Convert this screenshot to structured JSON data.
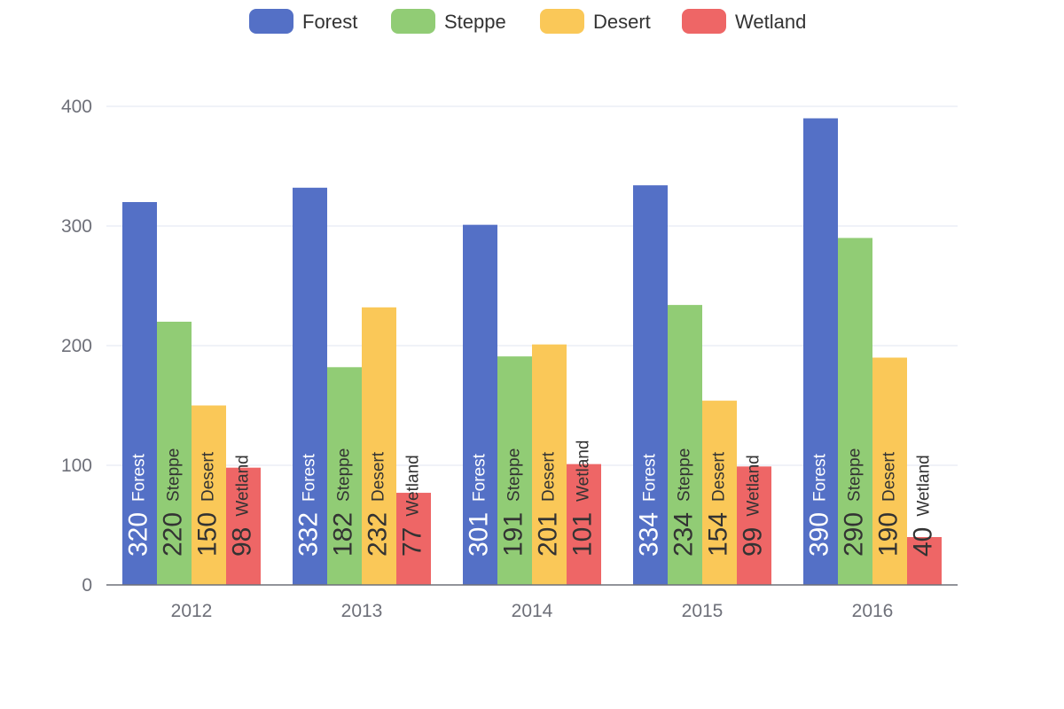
{
  "chart_data": {
    "type": "bar",
    "categories": [
      "2012",
      "2013",
      "2014",
      "2015",
      "2016"
    ],
    "series": [
      {
        "name": "Forest",
        "color": "#5470c6",
        "label_color": "#ffffff",
        "values": [
          320,
          332,
          301,
          334,
          390
        ]
      },
      {
        "name": "Steppe",
        "color": "#91cc75",
        "label_color": "#333333",
        "values": [
          220,
          182,
          191,
          234,
          290
        ]
      },
      {
        "name": "Desert",
        "color": "#fac858",
        "label_color": "#333333",
        "values": [
          150,
          232,
          201,
          154,
          190
        ]
      },
      {
        "name": "Wetland",
        "color": "#ee6666",
        "label_color": "#333333",
        "values": [
          98,
          77,
          101,
          99,
          40
        ]
      }
    ],
    "ylim": [
      0,
      400
    ],
    "y_ticks": [
      "0",
      "100",
      "200",
      "300",
      "400"
    ],
    "grid": true,
    "legend_position": "top-center",
    "bar_labels": "inside-bottom-rotated"
  }
}
